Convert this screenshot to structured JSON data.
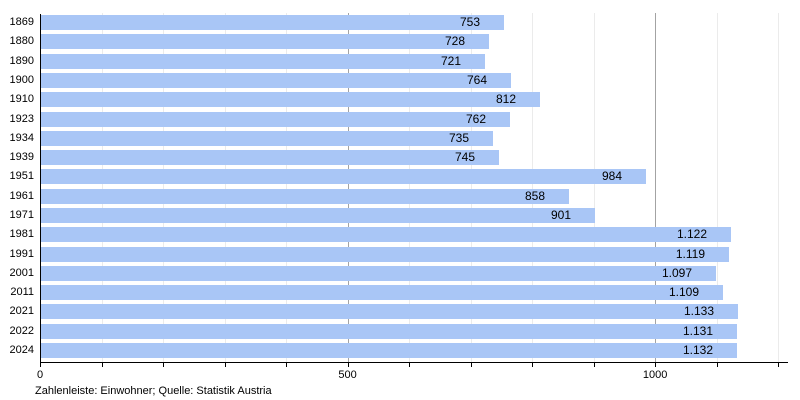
{
  "chart_data": {
    "type": "bar",
    "orientation": "horizontal",
    "title": "",
    "xlabel": "",
    "ylabel": "",
    "categories": [
      "1869",
      "1880",
      "1890",
      "1900",
      "1910",
      "1923",
      "1934",
      "1939",
      "1951",
      "1961",
      "1971",
      "1981",
      "1991",
      "2001",
      "2011",
      "2021",
      "2022",
      "2024"
    ],
    "values": [
      753,
      728,
      721,
      764,
      812,
      762,
      735,
      745,
      984,
      858,
      901,
      1122,
      1119,
      1097,
      1109,
      1133,
      1131,
      1132
    ],
    "value_labels": [
      "753",
      "728",
      "721",
      "764",
      "812",
      "762",
      "735",
      "745",
      "984",
      "858",
      "901",
      "1.122",
      "1.119",
      "1.097",
      "1.109",
      "1.133",
      "1.131",
      "1.132"
    ],
    "xlim": [
      0,
      1216
    ],
    "x_ticks_minor_step": 100,
    "x_ticks_max": 1200,
    "x_tick_labels": [
      {
        "value": 0,
        "label": "0"
      },
      {
        "value": 500,
        "label": "500"
      },
      {
        "value": 1000,
        "label": "1000"
      }
    ],
    "major_gridline_values": [
      500,
      1000
    ],
    "grid": "vertical",
    "legend": "none",
    "colors": {
      "bar_fill": "#a9c6f6",
      "grid_minor": "#ebebeb",
      "grid_major": "#a3a3a3",
      "axis": "#000000",
      "text": "#000000",
      "background": "#ffffff"
    }
  },
  "caption": "Zahlenleiste: Einwohner; Quelle: Statistik Austria"
}
